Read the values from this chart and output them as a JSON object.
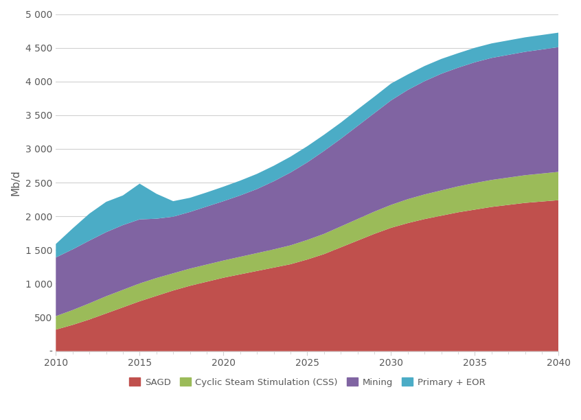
{
  "years": [
    2010,
    2011,
    2012,
    2013,
    2014,
    2015,
    2016,
    2017,
    2018,
    2019,
    2020,
    2021,
    2022,
    2023,
    2024,
    2025,
    2026,
    2027,
    2028,
    2029,
    2030,
    2031,
    2032,
    2033,
    2034,
    2035,
    2036,
    2037,
    2038,
    2039,
    2040
  ],
  "sagd": [
    320,
    390,
    470,
    560,
    650,
    740,
    820,
    900,
    970,
    1030,
    1090,
    1140,
    1190,
    1240,
    1290,
    1360,
    1440,
    1540,
    1640,
    1740,
    1830,
    1900,
    1960,
    2010,
    2060,
    2100,
    2140,
    2170,
    2200,
    2220,
    2240
  ],
  "css": [
    200,
    220,
    240,
    255,
    260,
    265,
    265,
    255,
    255,
    255,
    255,
    260,
    265,
    270,
    280,
    290,
    300,
    310,
    320,
    330,
    340,
    355,
    365,
    375,
    385,
    395,
    400,
    405,
    410,
    415,
    420
  ],
  "mining": [
    870,
    900,
    930,
    950,
    960,
    950,
    880,
    840,
    840,
    860,
    880,
    910,
    950,
    1010,
    1080,
    1150,
    1230,
    1300,
    1380,
    1460,
    1550,
    1620,
    1680,
    1730,
    1760,
    1790,
    1810,
    1820,
    1830,
    1840,
    1850
  ],
  "primary_eor": [
    200,
    310,
    400,
    450,
    440,
    530,
    370,
    230,
    210,
    210,
    215,
    220,
    225,
    230,
    235,
    240,
    240,
    240,
    245,
    245,
    250,
    230,
    225,
    220,
    215,
    215,
    215,
    215,
    215,
    215,
    215
  ],
  "colors": {
    "sagd": "#c0504d",
    "css": "#9bbb59",
    "mining": "#8064a2",
    "primary_eor": "#4bacc6"
  },
  "ylabel": "Mb/d",
  "ylim": [
    0,
    5000
  ],
  "yticks": [
    0,
    500,
    1000,
    1500,
    2000,
    2500,
    3000,
    3500,
    4000,
    4500,
    5000
  ],
  "ytick_labels": [
    "-",
    "500",
    "1 000",
    "1 500",
    "2 000",
    "2 500",
    "3 000",
    "3 500",
    "4 000",
    "4 500",
    "5 000"
  ],
  "xlim": [
    2010,
    2040
  ],
  "xticks": [
    2010,
    2015,
    2020,
    2025,
    2030,
    2035,
    2040
  ],
  "legend_labels": [
    "SAGD",
    "Cyclic Steam Stimulation (CSS)",
    "Mining",
    "Primary + EOR"
  ],
  "background_color": "#ffffff",
  "grid_color": "#d0d0d0",
  "text_color": "#595959"
}
